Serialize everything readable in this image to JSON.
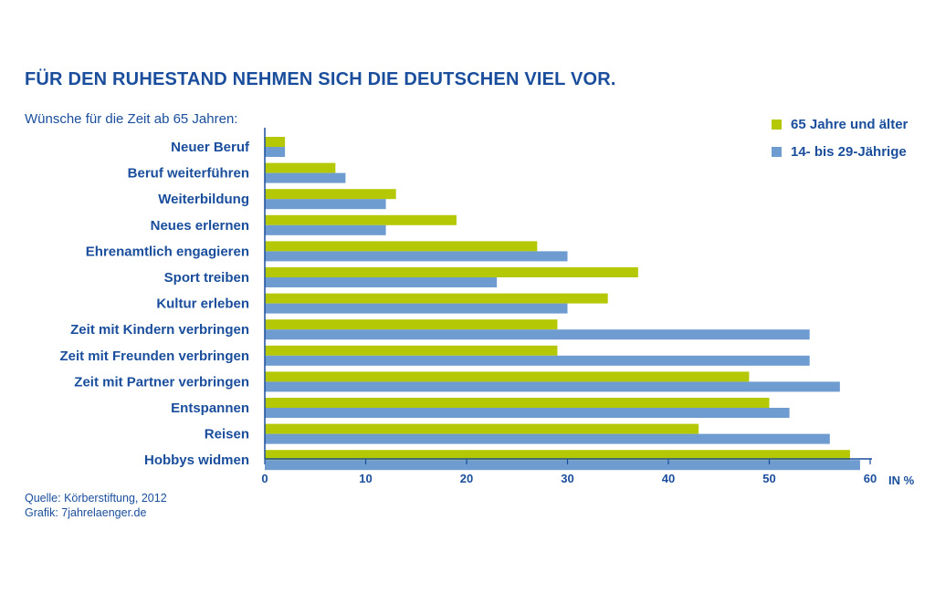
{
  "title": "FÜR DEN RUHESTAND NEHMEN SICH DIE DEUTSCHEN VIEL VOR.",
  "subtitle": "Wünsche für die Zeit ab 65 Jahren:",
  "source_line1": "Quelle: Körberstiftung, 2012",
  "source_line2": "Grafik: 7jahrelaenger.de",
  "colors": {
    "text": "#1a4e9c",
    "series_old": "#b5c805",
    "series_young": "#6e9bd0",
    "axis": "#1a4e9c"
  },
  "chart_data": {
    "type": "bar",
    "orientation": "horizontal",
    "title": "FÜR DEN RUHESTAND NEHMEN SICH DIE DEUTSCHEN VIEL VOR.",
    "subtitle": "Wünsche für die Zeit ab 65 Jahren:",
    "xlabel": "IN %",
    "ylabel": "",
    "xlim": [
      0,
      60
    ],
    "xticks": [
      0,
      10,
      20,
      30,
      40,
      50,
      60
    ],
    "grid": false,
    "legend_position": "top-right",
    "categories": [
      "Neuer Beruf",
      "Beruf weiterführen",
      "Weiterbildung",
      "Neues erlernen",
      "Ehrenamtlich engagieren",
      "Sport treiben",
      "Kultur erleben",
      "Zeit mit Kindern verbringen",
      "Zeit mit Freunden verbringen",
      "Zeit mit Partner verbringen",
      "Entspannen",
      "Reisen",
      "Hobbys widmen"
    ],
    "series": [
      {
        "name": "65 Jahre und älter",
        "color": "#b5c805",
        "values": [
          2,
          7,
          13,
          19,
          27,
          37,
          34,
          29,
          29,
          48,
          50,
          43,
          58
        ]
      },
      {
        "name": "14- bis 29-Jährige",
        "color": "#6e9bd0",
        "values": [
          2,
          8,
          12,
          12,
          30,
          23,
          30,
          54,
          54,
          57,
          52,
          56,
          59
        ]
      }
    ]
  }
}
